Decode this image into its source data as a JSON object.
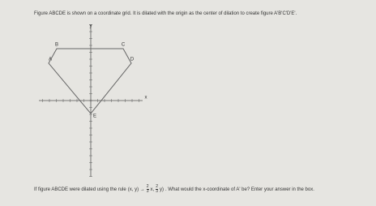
{
  "header": {
    "text": "Figure ABCDE is shown on a coordinate grid. It is dilated with the origin as the center of dilation to create figure A'B'C'D'E'."
  },
  "graph": {
    "axis_labels": {
      "x": "x",
      "y": "y"
    },
    "vertices": [
      "A",
      "B",
      "C",
      "D",
      "E"
    ]
  },
  "question": {
    "before": "If figure ABCDE were dilated using the rule",
    "rule_start": "(x, y) →",
    "coef_num": "2",
    "coef_den": "3",
    "mid": "x,",
    "end": "y)",
    "after": ". What would the x-coordinate of A' be? Enter your answer in the box."
  }
}
